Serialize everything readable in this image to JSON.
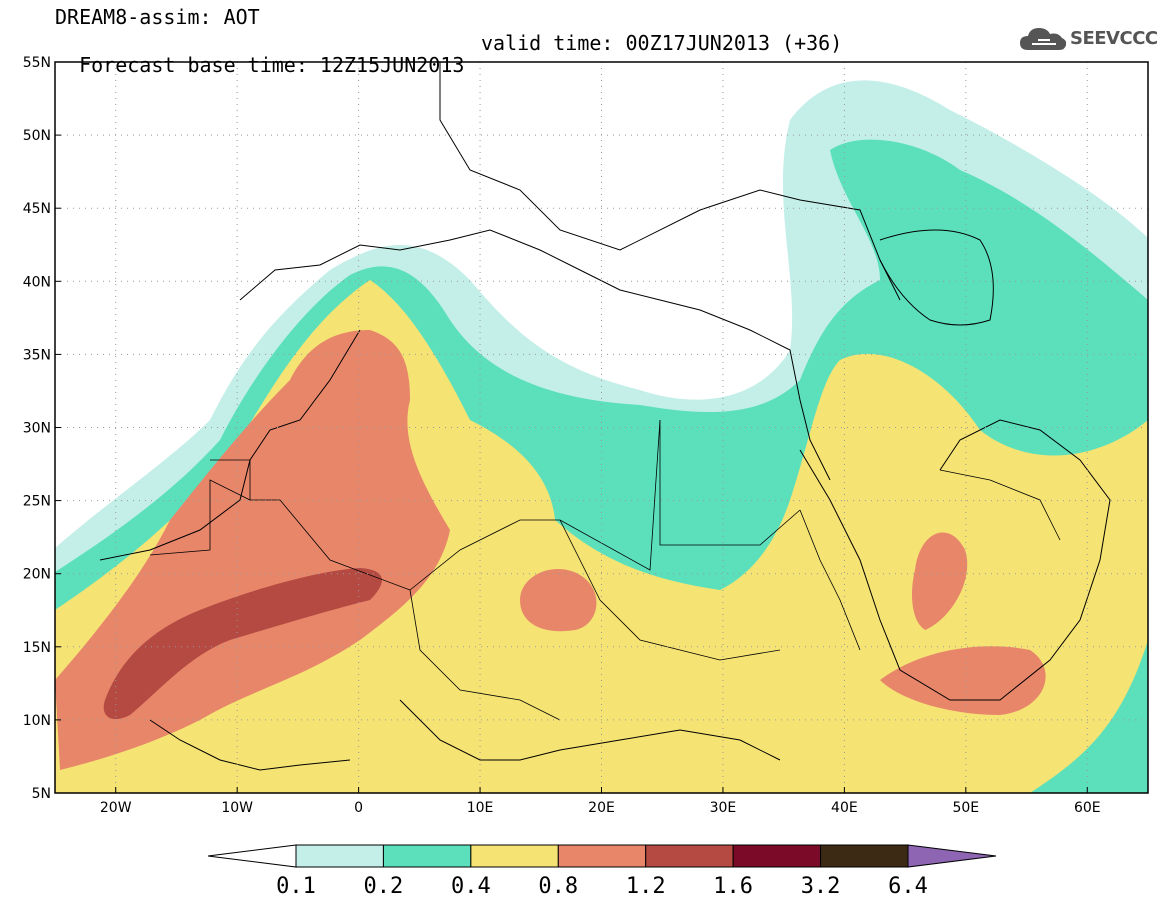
{
  "title": {
    "line1": "DREAM8-assim: AOT",
    "line2_base": "Forecast base time: 12Z15JUN2013",
    "line2_valid": "valid time: 00Z17JUN2013 (+36)"
  },
  "logo": {
    "text": "SEEVCCC",
    "icon": "cloud-icon",
    "color": "#555555"
  },
  "map_data": {
    "type": "filled-contour-map",
    "variable": "AOT",
    "lon_range": [
      -25,
      65
    ],
    "lat_range": [
      5,
      55
    ],
    "grid": "dotted",
    "x_ticks": [
      "20W",
      "10W",
      "0",
      "10E",
      "20E",
      "30E",
      "40E",
      "50E",
      "60E"
    ],
    "y_ticks": [
      "5N",
      "10N",
      "15N",
      "20N",
      "25N",
      "30N",
      "35N",
      "40N",
      "45N",
      "50N",
      "55N"
    ]
  },
  "colorbar": {
    "levels": [
      "0.1",
      "0.2",
      "0.4",
      "0.8",
      "1.2",
      "1.6",
      "3.2",
      "6.4"
    ],
    "colors": [
      "#c3efe8",
      "#5ce0bc",
      "#f5e374",
      "#e8866a",
      "#b44a42",
      "#7a0a27",
      "#3c2a14",
      "#8e65b2"
    ]
  }
}
